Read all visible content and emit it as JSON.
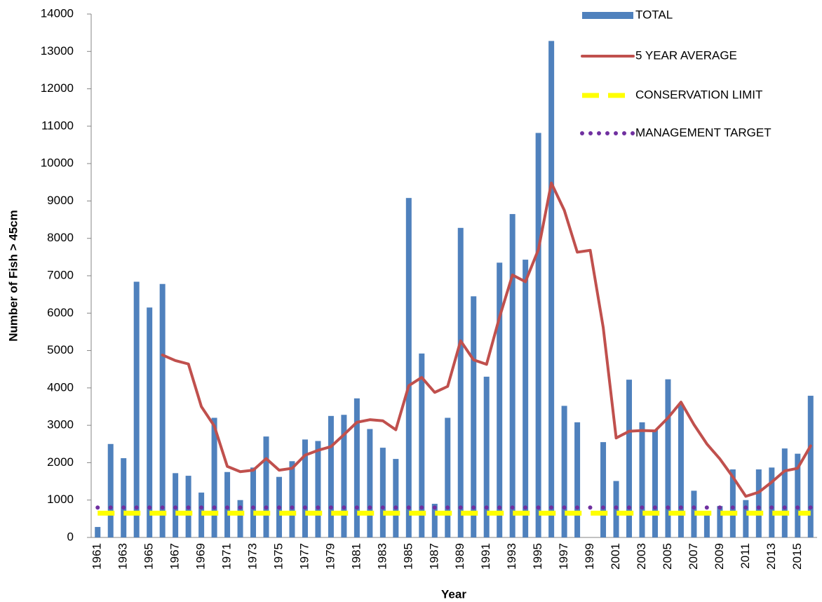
{
  "chart_data": {
    "type": "bar",
    "x_label": "Year",
    "y_label": "Number of Fish > 45cm",
    "categories": [
      "1961",
      null,
      "1963",
      null,
      "1965",
      null,
      "1967",
      null,
      "1969",
      null,
      "1971",
      null,
      "1973",
      null,
      "1975",
      null,
      "1977",
      null,
      "1979",
      null,
      "1981",
      null,
      "1983",
      null,
      "1985",
      null,
      "1987",
      null,
      "1989",
      null,
      "1991",
      null,
      "1993",
      null,
      "1995",
      null,
      "1997",
      null,
      "1999",
      null,
      "2001",
      null,
      "2003",
      null,
      "2005",
      null,
      "2007",
      null,
      "2009",
      null,
      "2011",
      null,
      "2013",
      null,
      "2015",
      null
    ],
    "ylim": [
      0,
      14000
    ],
    "yticks": [
      0,
      1000,
      2000,
      3000,
      4000,
      5000,
      6000,
      7000,
      8000,
      9000,
      10000,
      11000,
      12000,
      13000,
      14000
    ],
    "grid": false,
    "legend": "upper right",
    "series": [
      {
        "name": "TOTAL",
        "type": "bar",
        "color": "#4f81bd",
        "values": [
          280,
          2500,
          2120,
          6840,
          6150,
          6780,
          1720,
          1650,
          1200,
          3200,
          1750,
          1000,
          1870,
          2700,
          1620,
          2040,
          2620,
          2580,
          3250,
          3280,
          3720,
          2900,
          2400,
          2100,
          9080,
          4920,
          900,
          3200,
          8280,
          6450,
          4300,
          7350,
          8650,
          7430,
          10820,
          13280,
          3520,
          3080,
          null,
          2550,
          1510,
          4220,
          3080,
          2880,
          4230,
          3560,
          1250,
          600,
          840,
          1820,
          1000,
          1820,
          1870,
          2380,
          2240,
          3790
        ]
      },
      {
        "name": "5 YEAR AVERAGE",
        "type": "line",
        "style": "solid",
        "color": "#c0504d",
        "values": [
          null,
          null,
          null,
          null,
          null,
          4880,
          4730,
          4640,
          3500,
          2980,
          1900,
          1760,
          1800,
          2110,
          1800,
          1850,
          2200,
          2330,
          2430,
          2750,
          3080,
          3150,
          3120,
          2880,
          4060,
          4280,
          3880,
          4040,
          5260,
          4750,
          4630,
          5890,
          7020,
          6840,
          7700,
          9480,
          8750,
          7630,
          7680,
          5620,
          2660,
          2840,
          2860,
          2850,
          3200,
          3620,
          3020,
          2500,
          2100,
          1620,
          1100,
          1210,
          1480,
          1780,
          1850,
          2450
        ]
      },
      {
        "name": "CONSERVATION LIMIT",
        "type": "line",
        "style": "dashed",
        "color": "#ffff00",
        "values": [
          650,
          650,
          650,
          650,
          650,
          650,
          650,
          650,
          650,
          650,
          650,
          650,
          650,
          650,
          650,
          650,
          650,
          650,
          650,
          650,
          650,
          650,
          650,
          650,
          650,
          650,
          650,
          650,
          650,
          650,
          650,
          650,
          650,
          650,
          650,
          650,
          650,
          650,
          650,
          650,
          650,
          650,
          650,
          650,
          650,
          650,
          650,
          650,
          650,
          650,
          650,
          650,
          650,
          650,
          650,
          650
        ]
      },
      {
        "name": "MANAGEMENT TARGET",
        "type": "line",
        "style": "dotted",
        "color": "#7030a0",
        "values": [
          800,
          800,
          800,
          800,
          800,
          800,
          800,
          800,
          800,
          800,
          800,
          800,
          800,
          800,
          800,
          800,
          800,
          800,
          800,
          800,
          800,
          800,
          800,
          800,
          800,
          800,
          800,
          800,
          800,
          800,
          800,
          800,
          800,
          800,
          800,
          800,
          800,
          800,
          800,
          800,
          800,
          800,
          800,
          800,
          800,
          800,
          800,
          800,
          800,
          800,
          800,
          800,
          800,
          800,
          800,
          800
        ]
      }
    ]
  }
}
